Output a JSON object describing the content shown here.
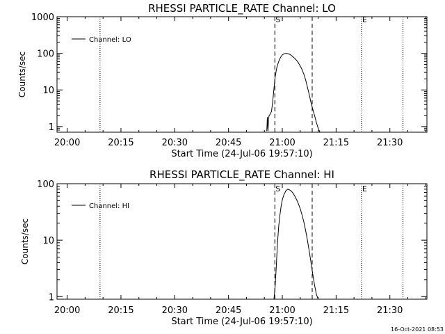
{
  "footer": {
    "timestamp": "16-Oct-2021 08:53"
  },
  "chart_data": [
    {
      "type": "line",
      "title": "RHESSI PARTICLE_RATE Channel: LO",
      "xlabel": "Start Time (24-Jul-06 19:57:10)",
      "ylabel": "Counts/sec",
      "xscale": "time (minutes)",
      "yscale": "log",
      "xlim": [
        "19:57:10",
        "21:40:20"
      ],
      "ylim": [
        0.7,
        1000
      ],
      "x_tick_labels": [
        "20:00",
        "20:15",
        "20:30",
        "20:45",
        "21:00",
        "21:15",
        "21:30"
      ],
      "y_tick_labels": [
        "1",
        "10",
        "100",
        "1000"
      ],
      "legend": {
        "placement": "top-left",
        "entries": [
          "Channel: LO"
        ]
      },
      "series": [
        {
          "name": "Channel: LO",
          "x": [
            "20:55:40",
            "20:55:50",
            "20:56:00",
            "20:56:10",
            "20:56:20",
            "20:56:40",
            "20:57:00",
            "20:57:20",
            "20:57:40",
            "20:58:00",
            "20:58:20",
            "20:58:40",
            "20:59:00",
            "20:59:20",
            "20:59:40",
            "21:00:00",
            "21:00:30",
            "21:01:00",
            "21:01:30",
            "21:02:00",
            "21:02:30",
            "21:03:00",
            "21:03:30",
            "21:04:00",
            "21:04:30",
            "21:05:00",
            "21:05:30",
            "21:06:00",
            "21:06:30",
            "21:07:00",
            "21:07:30",
            "21:08:00",
            "21:08:30",
            "21:09:00",
            "21:09:30",
            "21:10:00",
            "21:10:30"
          ],
          "values": [
            0.75,
            1.8,
            0.75,
            1.6,
            2.0,
            2.2,
            2.6,
            5.0,
            11,
            22,
            35,
            48,
            60,
            72,
            82,
            90,
            97,
            100,
            98,
            94,
            88,
            80,
            72,
            64,
            55,
            45,
            36,
            27,
            19,
            12,
            7.5,
            4.5,
            3.0,
            2.0,
            1.3,
            0.9,
            0.7
          ]
        }
      ],
      "vertical_markers": [
        {
          "time": "20:09:10",
          "style": "dotted",
          "label": ""
        },
        {
          "time": "20:57:55",
          "style": "dashed",
          "label": "S"
        },
        {
          "time": "21:08:20",
          "style": "dashed",
          "label": ""
        },
        {
          "time": "21:22:05",
          "style": "dotted",
          "label": "E"
        },
        {
          "time": "21:33:40",
          "style": "dotted",
          "label": ""
        }
      ]
    },
    {
      "type": "line",
      "title": "RHESSI PARTICLE_RATE Channel: HI",
      "xlabel": "Start Time (24-Jul-06 19:57:10)",
      "ylabel": "Counts/sec",
      "xscale": "time (minutes)",
      "yscale": "log",
      "xlim": [
        "19:57:10",
        "21:40:20"
      ],
      "ylim": [
        0.9,
        100
      ],
      "x_tick_labels": [
        "20:00",
        "20:15",
        "20:30",
        "20:45",
        "21:00",
        "21:15",
        "21:30"
      ],
      "y_tick_labels": [
        "1",
        "10",
        "100"
      ],
      "legend": {
        "placement": "top-left",
        "entries": [
          "Channel: HI"
        ]
      },
      "series": [
        {
          "name": "Channel: HI",
          "x": [
            "20:57:40",
            "20:58:00",
            "20:58:20",
            "20:58:40",
            "20:59:00",
            "20:59:20",
            "20:59:40",
            "21:00:00",
            "21:00:30",
            "21:01:00",
            "21:01:30",
            "21:02:00",
            "21:02:30",
            "21:03:00",
            "21:03:30",
            "21:04:00",
            "21:04:30",
            "21:05:00",
            "21:05:30",
            "21:06:00",
            "21:06:30",
            "21:07:00",
            "21:07:30",
            "21:08:00",
            "21:08:30",
            "21:09:00",
            "21:09:30",
            "21:10:00"
          ],
          "values": [
            0.9,
            1.5,
            3.5,
            9,
            18,
            28,
            40,
            52,
            65,
            75,
            80,
            78,
            74,
            68,
            60,
            52,
            44,
            36,
            28,
            21,
            15,
            10,
            6.5,
            4.0,
            2.5,
            1.6,
            1.1,
            0.9
          ]
        }
      ],
      "vertical_markers": [
        {
          "time": "20:09:10",
          "style": "dotted",
          "label": ""
        },
        {
          "time": "20:57:55",
          "style": "dashed",
          "label": "S"
        },
        {
          "time": "21:08:20",
          "style": "dashed",
          "label": ""
        },
        {
          "time": "21:22:05",
          "style": "dotted",
          "label": "E"
        },
        {
          "time": "21:33:40",
          "style": "dotted",
          "label": ""
        }
      ]
    }
  ]
}
